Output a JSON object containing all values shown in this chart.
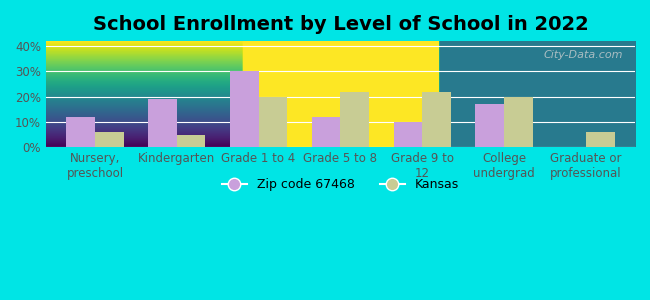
{
  "title": "School Enrollment by Level of School in 2022",
  "categories": [
    "Nursery,\npreschool",
    "Kindergarten",
    "Grade 1 to 4",
    "Grade 5 to 8",
    "Grade 9 to\n12",
    "College\nundergrad",
    "Graduate or\nprofessional"
  ],
  "zip_values": [
    12,
    19,
    30,
    12,
    10,
    17,
    0
  ],
  "kansas_values": [
    6,
    5,
    20,
    22,
    22,
    20,
    6
  ],
  "zip_color": "#c9a0dc",
  "kansas_color": "#c8cc94",
  "background_outer": "#00e5e5",
  "background_inner_top": "#f5f5e8",
  "background_inner_bottom": "#dff5e8",
  "ylim": [
    0,
    42
  ],
  "yticks": [
    0,
    10,
    20,
    30,
    40
  ],
  "ytick_labels": [
    "0%",
    "10%",
    "20%",
    "30%",
    "40%"
  ],
  "zip_label": "Zip code 67468",
  "kansas_label": "Kansas",
  "watermark": "City-Data.com",
  "title_fontsize": 14,
  "tick_fontsize": 8.5,
  "legend_fontsize": 9
}
